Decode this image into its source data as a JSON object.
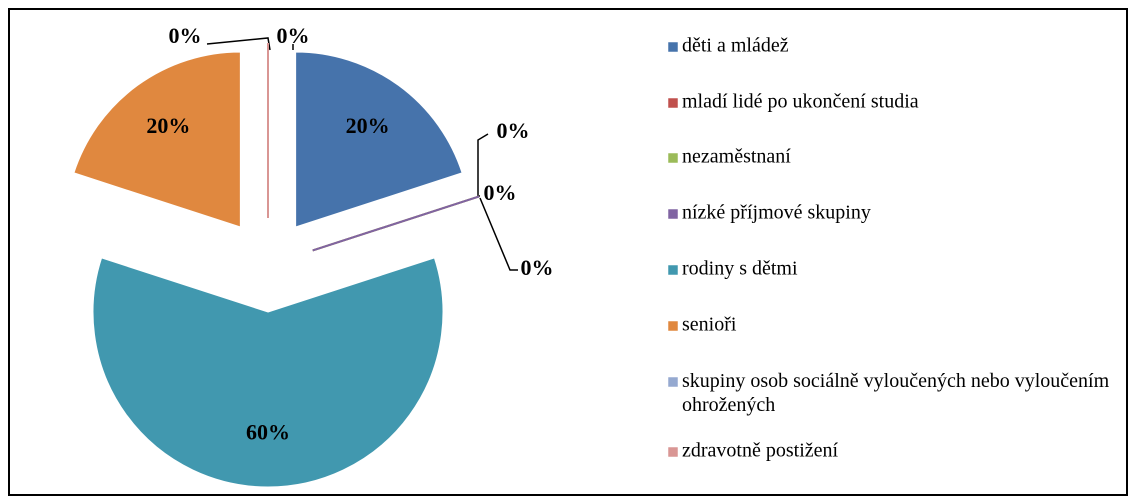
{
  "chart_data": {
    "type": "pie",
    "categories": [
      "děti a mládež",
      "mladí lidé po ukončení studia",
      "nezaměstnaní",
      "nízké příjmové skupiny",
      "rodiny s dětmi",
      "senioři",
      "skupiny osob sociálně vyloučených nebo vyloučením ohrožených",
      "zdravotně postižení"
    ],
    "values": [
      20,
      0,
      0,
      0,
      60,
      20,
      0,
      0
    ],
    "value_labels": [
      "20%",
      "0%",
      "0%",
      "0%",
      "60%",
      "20%",
      "0%",
      "0%"
    ],
    "colors": [
      "#4673ab",
      "#c0504d",
      "#9bbb59",
      "#8064a2",
      "#4198af",
      "#e0883f",
      "#95a9d0",
      "#d99694"
    ],
    "exploded": true,
    "legend": "right"
  }
}
